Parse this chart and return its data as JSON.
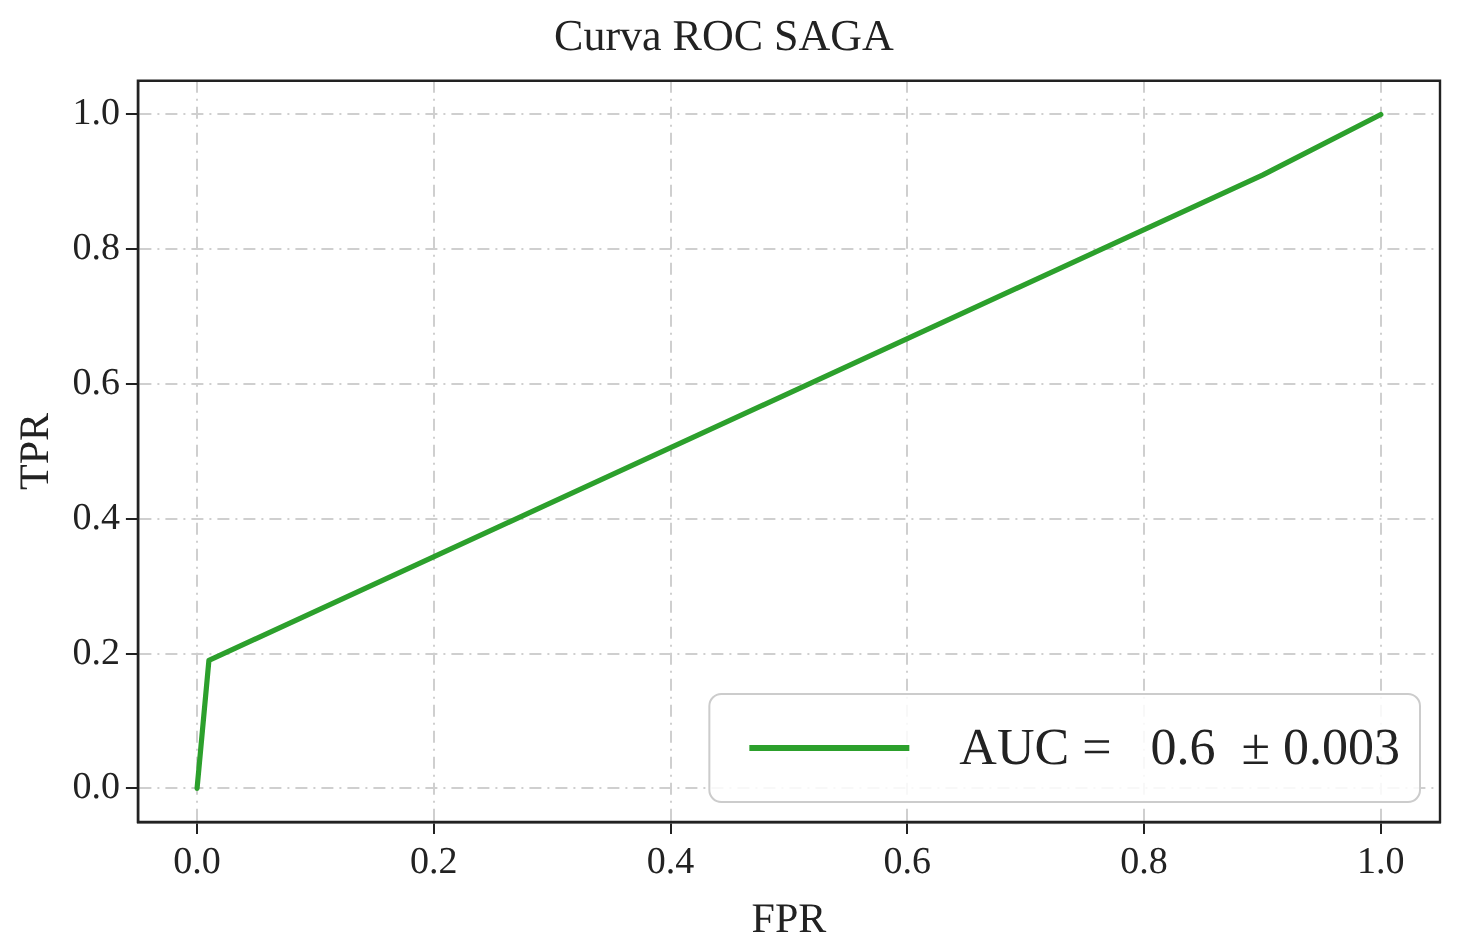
{
  "chart_data": {
    "type": "line",
    "title": "Curva ROC SAGA",
    "xlabel": "FPR",
    "ylabel": "TPR",
    "x": [
      0,
      0.01,
      0.9,
      1
    ],
    "series": [
      {
        "name": "AUC =   0.6  ± 0.003",
        "color": "#2ca02c",
        "values": [
          0,
          0.19,
          0.91,
          1
        ]
      }
    ],
    "xlim": [
      -0.05,
      1.05
    ],
    "ylim": [
      -0.05,
      1.05
    ],
    "xticks": [
      {
        "value": 0,
        "label": "0.0"
      },
      0.2,
      0.4,
      0.6,
      0.8,
      {
        "value": 1,
        "label": "1.0"
      }
    ],
    "yticks": [
      {
        "value": 0,
        "label": "0.0"
      },
      0.2,
      0.4,
      0.6,
      0.8,
      {
        "value": 1,
        "label": "1.0"
      }
    ],
    "grid": true,
    "legend": "bottom right",
    "marker": "none",
    "line_style": "solid"
  }
}
